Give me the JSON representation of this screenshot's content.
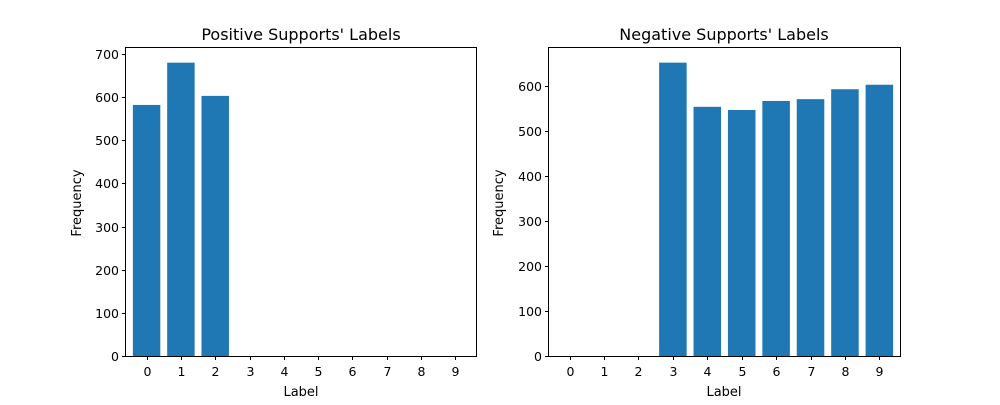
{
  "chart_data": [
    {
      "type": "bar",
      "title": "Positive Supports' Labels",
      "xlabel": "Label",
      "ylabel": "Frequency",
      "categories": [
        "0",
        "1",
        "2",
        "3",
        "4",
        "5",
        "6",
        "7",
        "8",
        "9"
      ],
      "values": [
        582,
        680,
        603,
        0,
        0,
        0,
        0,
        0,
        0,
        0
      ],
      "ylim": [
        0,
        714
      ],
      "yticks": [
        0,
        100,
        200,
        300,
        400,
        500,
        600,
        700
      ],
      "bar_color": "#1f77b4",
      "grid": false
    },
    {
      "type": "bar",
      "title": "Negative Supports' Labels",
      "xlabel": "Label",
      "ylabel": "Frequency",
      "categories": [
        "0",
        "1",
        "2",
        "3",
        "4",
        "5",
        "6",
        "7",
        "8",
        "9"
      ],
      "values": [
        0,
        0,
        0,
        651,
        553,
        546,
        566,
        570,
        592,
        602
      ],
      "ylim": [
        0,
        683.5
      ],
      "yticks": [
        0,
        100,
        200,
        300,
        400,
        500,
        600
      ],
      "bar_color": "#1f77b4",
      "grid": false
    }
  ]
}
